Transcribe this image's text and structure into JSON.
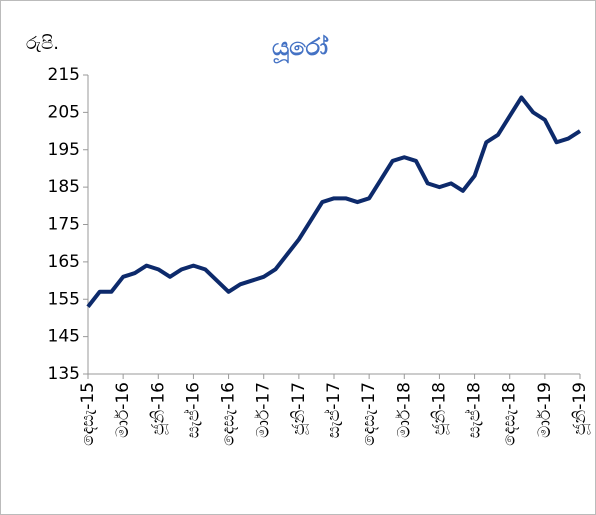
{
  "chart_data": {
    "type": "line",
    "title": "යූරෝ",
    "y_label": "රුපි.",
    "categories": [
      "දෙසැ-15",
      null,
      null,
      "මාර්-16",
      null,
      null,
      "ජූනි-16",
      null,
      null,
      "සැප්-16",
      null,
      null,
      "දෙසැ-16",
      null,
      null,
      "මාර්-17",
      null,
      null,
      "ජූනි-17",
      null,
      null,
      "සැප්-17",
      null,
      null,
      "දෙසැ-17",
      null,
      null,
      "මාර්-18",
      null,
      null,
      "ජූනි-18",
      null,
      null,
      "සැප්-18",
      null,
      null,
      "දෙසැ-18",
      null,
      null,
      "මාර්-19",
      null,
      null,
      "ජූනි-19"
    ],
    "series": [
      {
        "name": "යූරෝ",
        "color": "#0d2a6b",
        "values": [
          153,
          157,
          157,
          161,
          162,
          164,
          163,
          161,
          163,
          164,
          163,
          160,
          157,
          159,
          160,
          161,
          163,
          167,
          171,
          176,
          181,
          182,
          182,
          181,
          182,
          187,
          192,
          193,
          192,
          186,
          185,
          186,
          184,
          188,
          197,
          199,
          204,
          209,
          205,
          203,
          197,
          198,
          200
        ]
      }
    ],
    "ylim": [
      135,
      215
    ],
    "yticks": [
      135,
      145,
      155,
      165,
      175,
      185,
      195,
      205,
      215
    ],
    "grid": false
  }
}
